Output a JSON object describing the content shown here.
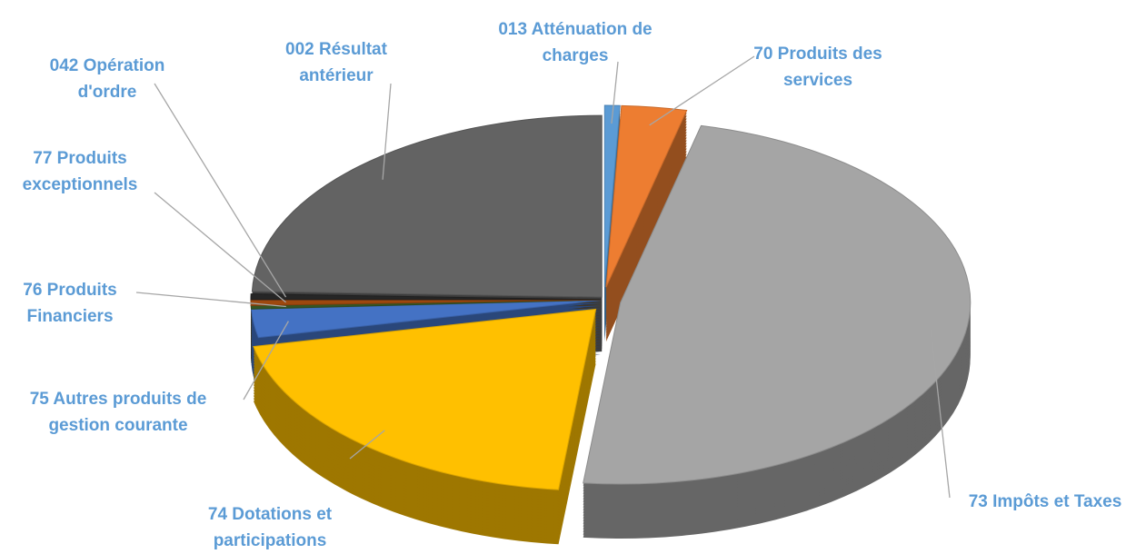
{
  "chart_data": {
    "type": "pie",
    "categories": [
      "013 Atténuation de charges",
      "70 Produits des services",
      "73 Impôts et Taxes",
      "74 Dotations et participations",
      "75 Autres produits de gestion courante",
      "76 Produits Financiers",
      "77 Produits exceptionnels",
      "042 Opération d'ordre",
      "002 Résultat antérieur"
    ],
    "values": [
      0.7,
      3,
      48,
      20,
      2.5,
      0.3,
      0.5,
      0.5,
      24.5
    ],
    "colors": [
      "#5b9bd5",
      "#ed7d31",
      "#a5a5a5",
      "#ffc000",
      "#4472c4",
      "#375623",
      "#9e480e",
      "#262626",
      "#636363"
    ]
  }
}
